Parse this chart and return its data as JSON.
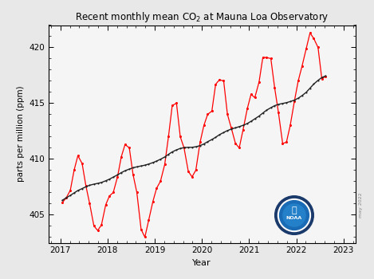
{
  "title": "Recent monthly mean CO$_2$ at Mauna Loa Observatory",
  "xlabel": "Year",
  "ylabel": "parts per million (ppm)",
  "xlim": [
    2016.75,
    2023.25
  ],
  "ylim": [
    402.5,
    422.0
  ],
  "yticks": [
    405,
    410,
    415,
    420
  ],
  "xticks": [
    2017,
    2018,
    2019,
    2020,
    2021,
    2022,
    2023
  ],
  "monthly_x": [
    2017.04,
    2017.12,
    2017.21,
    2017.29,
    2017.37,
    2017.46,
    2017.54,
    2017.62,
    2017.71,
    2017.79,
    2017.87,
    2017.96,
    2018.04,
    2018.12,
    2018.21,
    2018.29,
    2018.37,
    2018.46,
    2018.54,
    2018.62,
    2018.71,
    2018.79,
    2018.87,
    2018.96,
    2019.04,
    2019.12,
    2019.21,
    2019.29,
    2019.37,
    2019.46,
    2019.54,
    2019.62,
    2019.71,
    2019.79,
    2019.87,
    2019.96,
    2020.04,
    2020.12,
    2020.21,
    2020.29,
    2020.37,
    2020.46,
    2020.54,
    2020.62,
    2020.71,
    2020.79,
    2020.87,
    2020.96,
    2021.04,
    2021.12,
    2021.21,
    2021.29,
    2021.37,
    2021.46,
    2021.54,
    2021.62,
    2021.71,
    2021.79,
    2021.87,
    2021.96,
    2022.04,
    2022.12,
    2022.21,
    2022.29,
    2022.37,
    2022.46,
    2022.54,
    2022.62
  ],
  "monthly_y": [
    406.1,
    406.5,
    407.2,
    409.0,
    410.3,
    409.6,
    407.6,
    406.0,
    404.0,
    403.6,
    404.1,
    405.9,
    406.7,
    407.0,
    408.4,
    410.2,
    411.3,
    411.0,
    408.6,
    407.0,
    403.7,
    403.0,
    404.5,
    406.2,
    407.4,
    408.0,
    409.5,
    412.0,
    414.8,
    415.0,
    412.0,
    411.0,
    408.9,
    408.4,
    409.0,
    411.5,
    413.0,
    414.0,
    414.3,
    416.7,
    417.1,
    417.0,
    414.0,
    412.8,
    411.4,
    411.0,
    412.6,
    414.5,
    415.8,
    415.5,
    416.9,
    419.1,
    419.1,
    419.0,
    416.4,
    414.2,
    411.4,
    411.5,
    413.0,
    415.2,
    417.0,
    418.3,
    419.9,
    421.3,
    420.8,
    420.0,
    417.2,
    417.4
  ],
  "trend_x": [
    2017.04,
    2017.12,
    2017.21,
    2017.29,
    2017.37,
    2017.46,
    2017.54,
    2017.62,
    2017.71,
    2017.79,
    2017.87,
    2017.96,
    2018.04,
    2018.12,
    2018.21,
    2018.29,
    2018.37,
    2018.46,
    2018.54,
    2018.62,
    2018.71,
    2018.79,
    2018.87,
    2018.96,
    2019.04,
    2019.12,
    2019.21,
    2019.29,
    2019.37,
    2019.46,
    2019.54,
    2019.62,
    2019.71,
    2019.79,
    2019.87,
    2019.96,
    2020.04,
    2020.12,
    2020.21,
    2020.29,
    2020.37,
    2020.46,
    2020.54,
    2020.62,
    2020.71,
    2020.79,
    2020.87,
    2020.96,
    2021.04,
    2021.12,
    2021.21,
    2021.29,
    2021.37,
    2021.46,
    2021.54,
    2021.62,
    2021.71,
    2021.79,
    2021.87,
    2021.96,
    2022.04,
    2022.12,
    2022.21,
    2022.29,
    2022.37,
    2022.46,
    2022.54,
    2022.62
  ],
  "trend_y": [
    406.3,
    406.52,
    406.74,
    406.96,
    407.18,
    407.35,
    407.52,
    407.65,
    407.75,
    407.82,
    407.9,
    408.05,
    408.2,
    408.38,
    408.58,
    408.78,
    408.95,
    409.1,
    409.22,
    409.3,
    409.38,
    409.45,
    409.55,
    409.68,
    409.82,
    409.98,
    410.18,
    410.42,
    410.64,
    410.82,
    410.95,
    411.02,
    411.05,
    411.05,
    411.1,
    411.2,
    411.35,
    411.55,
    411.75,
    411.95,
    412.18,
    412.38,
    412.55,
    412.68,
    412.8,
    412.9,
    413.02,
    413.18,
    413.38,
    413.6,
    413.85,
    414.12,
    414.38,
    414.6,
    414.78,
    414.9,
    414.98,
    415.05,
    415.15,
    415.28,
    415.45,
    415.68,
    415.98,
    416.35,
    416.72,
    417.05,
    417.3,
    417.45
  ],
  "monthly_color": "#ff0000",
  "trend_color": "#222222",
  "watermark": "may 2022",
  "fig_facecolor": "#e8e8e8",
  "plot_facecolor": "#f5f5f5"
}
